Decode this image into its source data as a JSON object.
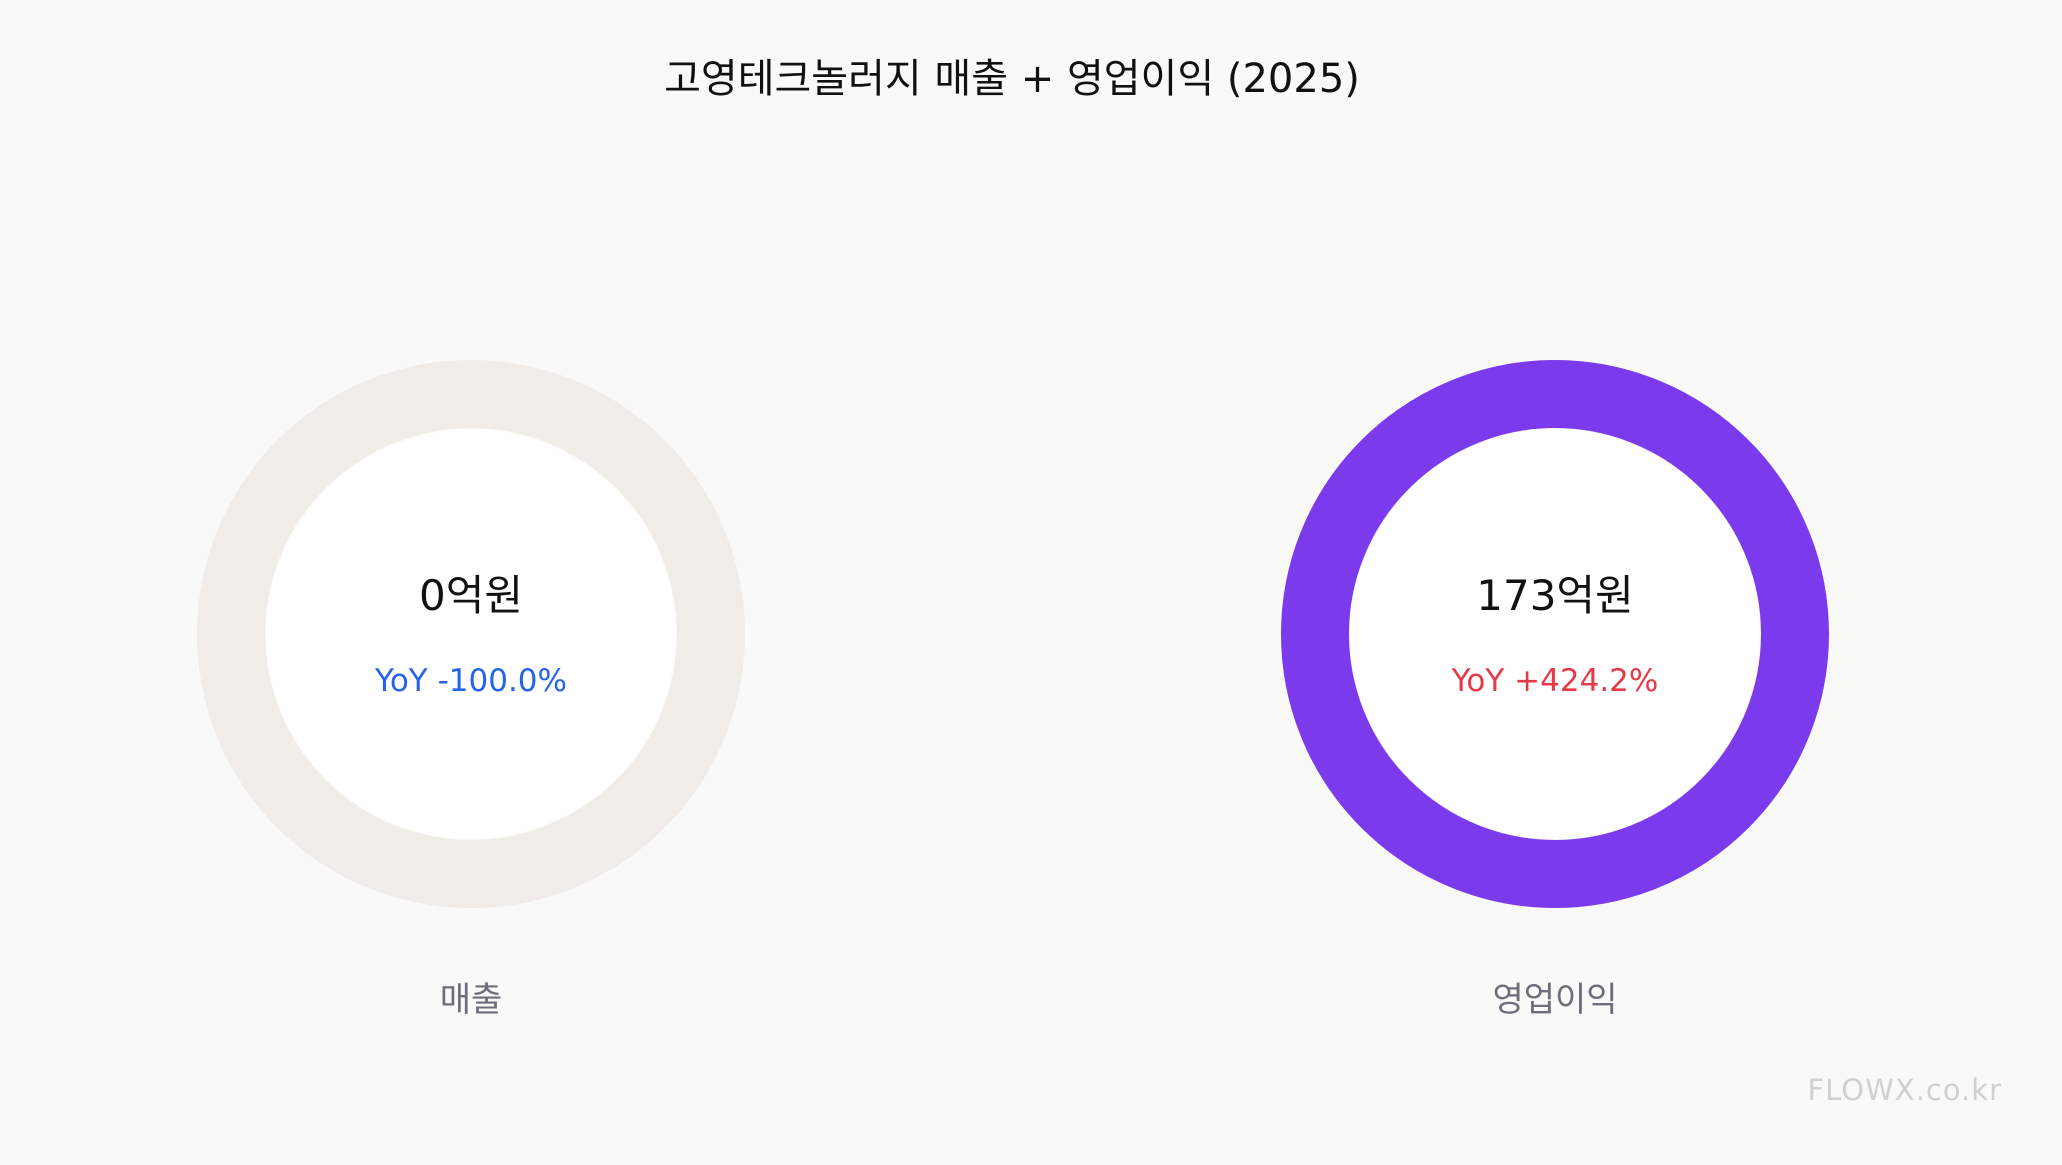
{
  "chart_data": {
    "type": "pie",
    "title": "고영테크놀러지  매출 + 영업이익 (2025)",
    "items": [
      {
        "category": "매출",
        "value": 0,
        "value_label": "0억원",
        "yoy_label": "YoY -100.0%",
        "yoy_percent": -100.0,
        "ring_color": "#f0ede8",
        "yoy_color": "#2563eb"
      },
      {
        "category": "영업이익",
        "value": 173,
        "value_label": "173억원",
        "yoy_label": "YoY +424.2%",
        "yoy_percent": 424.2,
        "ring_color": "#7c3aed",
        "yoy_color": "#e63946"
      }
    ]
  },
  "watermark": "FLOWX.co.kr",
  "colors": {
    "background": "#f9f9f7",
    "inner_fill": "#ffffff"
  }
}
